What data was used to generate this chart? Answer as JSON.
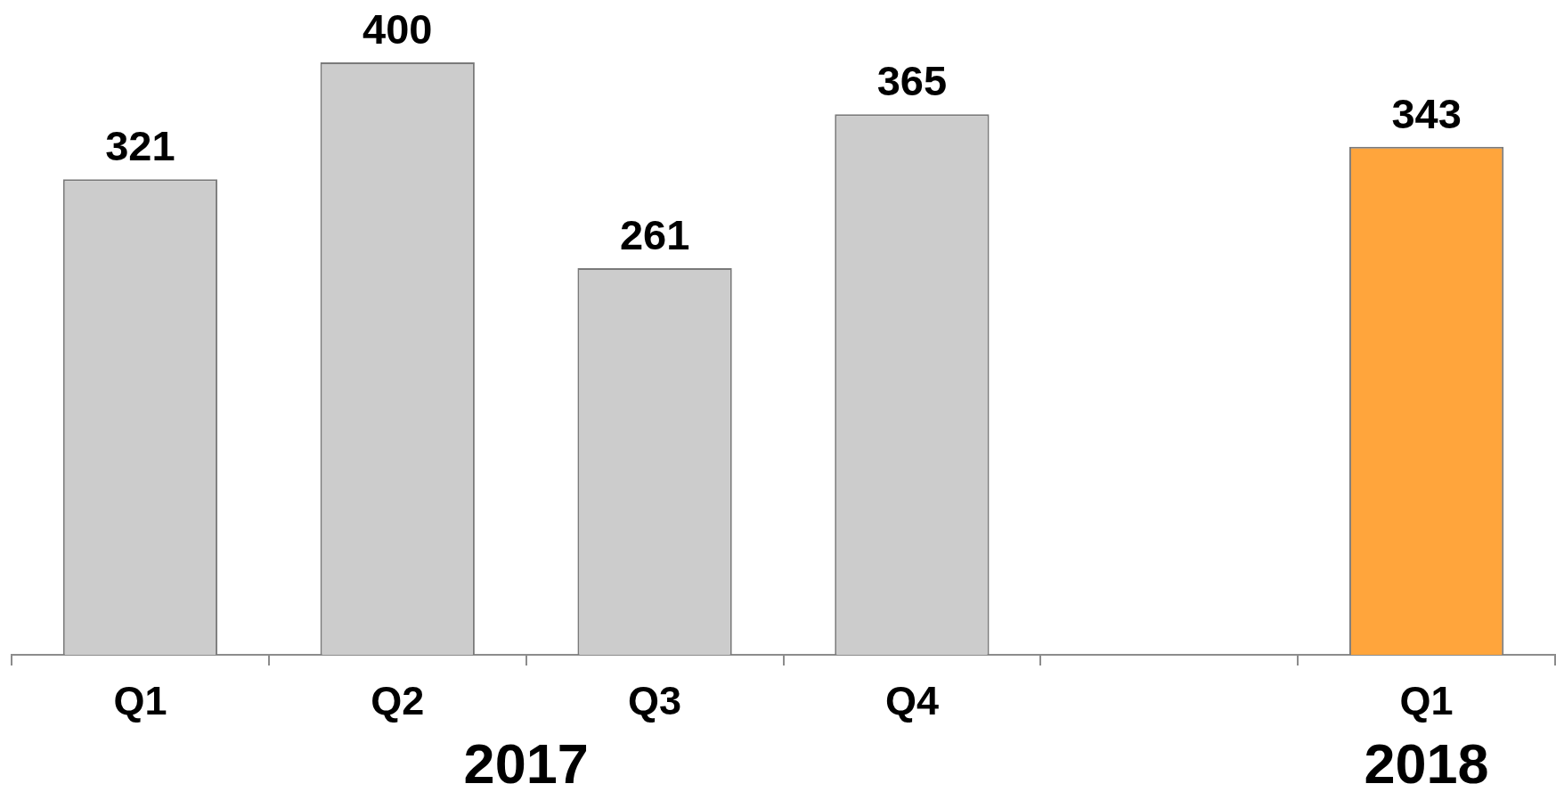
{
  "chart_data": {
    "type": "bar",
    "categories": [
      "Q1",
      "Q2",
      "Q3",
      "Q4",
      null,
      "Q1"
    ],
    "values": [
      321,
      400,
      261,
      365,
      null,
      343
    ],
    "colors": [
      "#cccccc",
      "#cccccc",
      "#cccccc",
      "#cccccc",
      null,
      "#ffa53c"
    ],
    "data_labels": true,
    "annotations": [
      "2017",
      "2018"
    ]
  }
}
